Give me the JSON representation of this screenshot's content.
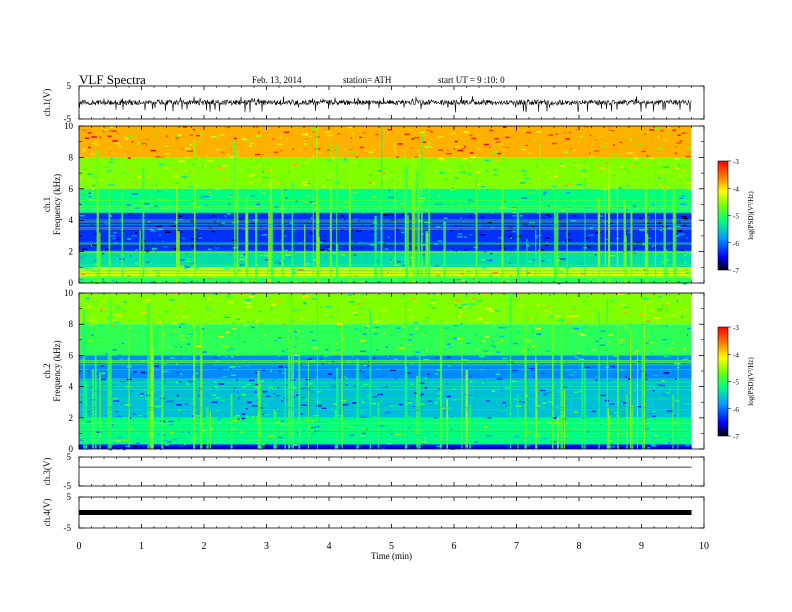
{
  "header": {
    "title": "VLF  Spectra",
    "date": "Feb. 13, 2014",
    "station": "station= ATH",
    "start": "start  UT  =   9  :10: 0"
  },
  "chart_data": [
    {
      "type": "line",
      "id": "ch1_waveform",
      "ylabel": "ch.1(V)",
      "ylim": [
        -5,
        5
      ],
      "yticks": [
        "5",
        "-5"
      ],
      "xlim": [
        0,
        10
      ],
      "x_end": 9.8,
      "baseline": 0,
      "series": [
        {
          "values": "dense noisy waveform, amplitude ~±1 V with frequent spikes to ~-2 V"
        }
      ]
    },
    {
      "type": "heatmap",
      "id": "ch1_spectrogram",
      "ylabel": "ch.1",
      "ylabel2": "Frequency  (kHz)",
      "ylim": [
        0,
        10
      ],
      "yticks": [
        "0",
        "2",
        "4",
        "6",
        "8",
        "10"
      ],
      "xlim": [
        0,
        10
      ],
      "x_end": 9.8,
      "colorbar": {
        "label": "log(PSD)(V²/Hz)",
        "range": [
          -7,
          -3
        ],
        "ticks": [
          "-3",
          "-4",
          "-5",
          "-6",
          "-7"
        ]
      },
      "bands": [
        {
          "f_from": 8,
          "f_to": 10,
          "logpsd": -3.8
        },
        {
          "f_from": 6,
          "f_to": 8,
          "logpsd": -4.6
        },
        {
          "f_from": 4.5,
          "f_to": 6,
          "logpsd": -5.2
        },
        {
          "f_from": 2,
          "f_to": 4.5,
          "logpsd": -6.3
        },
        {
          "f_from": 1,
          "f_to": 2,
          "logpsd": -5.4
        },
        {
          "f_from": 0.3,
          "f_to": 1,
          "logpsd": -4.3
        },
        {
          "f_from": 0,
          "f_to": 0.3,
          "logpsd": -5.0
        }
      ]
    },
    {
      "type": "heatmap",
      "id": "ch2_spectrogram",
      "ylabel": "ch.2",
      "ylabel2": "Frequency  (kHz)",
      "ylim": [
        0,
        10
      ],
      "yticks": [
        "0",
        "2",
        "4",
        "6",
        "8",
        "10"
      ],
      "xlim": [
        0,
        10
      ],
      "x_end": 9.8,
      "colorbar": {
        "label": "log(PSD)(V²/Hz)",
        "range": [
          -7,
          -3
        ],
        "ticks": [
          "-3",
          "-4",
          "-5",
          "-6",
          "-7"
        ]
      },
      "bands": [
        {
          "f_from": 8,
          "f_to": 10,
          "logpsd": -4.6
        },
        {
          "f_from": 6,
          "f_to": 8,
          "logpsd": -5.0
        },
        {
          "f_from": 4.5,
          "f_to": 6,
          "logpsd": -5.9
        },
        {
          "f_from": 2,
          "f_to": 4.5,
          "logpsd": -5.6
        },
        {
          "f_from": 0.3,
          "f_to": 2,
          "logpsd": -5.2
        },
        {
          "f_from": 0,
          "f_to": 0.3,
          "logpsd": -6.5
        }
      ]
    },
    {
      "type": "line",
      "id": "ch3_waveform",
      "ylabel": "ch.3(V)",
      "ylim": [
        -5,
        5
      ],
      "yticks": [
        "5",
        "-5"
      ],
      "xlim": [
        0,
        10
      ],
      "x_end": 9.8,
      "baseline": 1.5,
      "series": [
        {
          "values": "flat thin trace at ~1.5 V"
        }
      ]
    },
    {
      "type": "line",
      "id": "ch4_waveform",
      "ylabel": "ch.4(V)",
      "ylim": [
        -5,
        5
      ],
      "yticks": [
        "5",
        "-5"
      ],
      "xlim": [
        0,
        10
      ],
      "x_end": 9.8,
      "baseline": 0,
      "series": [
        {
          "values": "thick constant trace at ~0 V"
        }
      ]
    }
  ],
  "xaxis": {
    "label": "Time  (min)",
    "ticks": [
      "0",
      "1",
      "2",
      "3",
      "4",
      "5",
      "6",
      "7",
      "8",
      "9",
      "10"
    ]
  }
}
